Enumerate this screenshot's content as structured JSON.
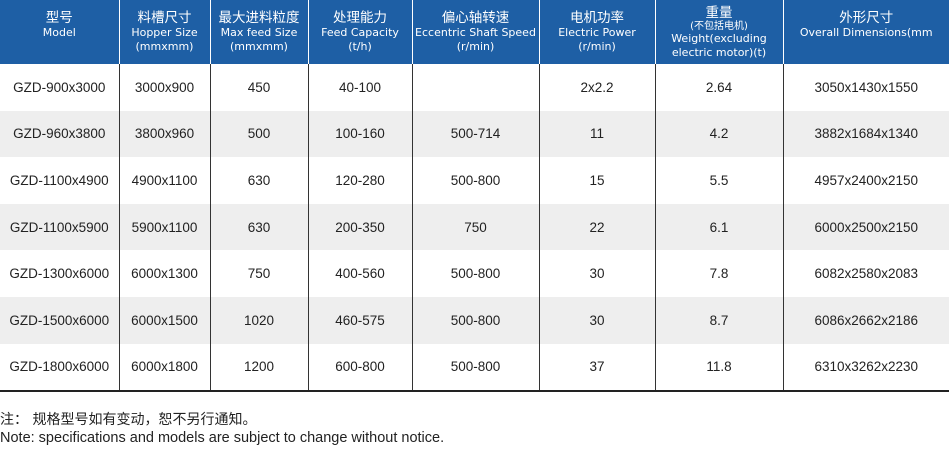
{
  "table": {
    "columns": [
      {
        "zh": "型号",
        "en": "Model"
      },
      {
        "zh": "料槽尺寸",
        "en": "Hopper Size (mmxmm)"
      },
      {
        "zh": "最大进料粒度",
        "en": "Max feed Size (mmxmm)"
      },
      {
        "zh": "处理能力",
        "en": "Feed Capacity (t/h)"
      },
      {
        "zh": "偏心轴转速",
        "en": "Eccentric Shaft Speed (r/min)"
      },
      {
        "zh": "电机功率",
        "en": "Electric Power (r/min)"
      },
      {
        "zh": "重量",
        "zh_sub": "(不包括电机)",
        "en": "Weight(excluding electric  motor)(t)"
      },
      {
        "zh": "外形尺寸",
        "en": "Overall Dimensions(mm"
      }
    ],
    "rows": [
      [
        "GZD-900x3000",
        "3000x900",
        "450",
        "40-100",
        "",
        "2x2.2",
        "2.64",
        "3050x1430x1550"
      ],
      [
        "GZD-960x3800",
        "3800x960",
        "500",
        "100-160",
        "500-714",
        "11",
        "4.2",
        "3882x1684x1340"
      ],
      [
        "GZD-1100x4900",
        "4900x1100",
        "630",
        "120-280",
        "500-800",
        "15",
        "5.5",
        "4957x2400x2150"
      ],
      [
        "GZD-1100x5900",
        "5900x1100",
        "630",
        "200-350",
        "750",
        "22",
        "6.1",
        "6000x2500x2150"
      ],
      [
        "GZD-1300x6000",
        "6000x1300",
        "750",
        "400-560",
        "500-800",
        "30",
        "7.8",
        "6082x2580x2083"
      ],
      [
        "GZD-1500x6000",
        "6000x1500",
        "1020",
        "460-575",
        "500-800",
        "30",
        "8.7",
        "6086x2662x2186"
      ],
      [
        "GZD-1800x6000",
        "6000x1800",
        "1200",
        "600-800",
        "500-800",
        "37",
        "11.8",
        "6310x3262x2230"
      ]
    ]
  },
  "notes": {
    "zh": "注：  规格型号如有变动，恕不另行通知。",
    "en": "Note:  specifications and models are subject to change without notice."
  },
  "colors": {
    "header_bg": "#1e5fa5",
    "stripe_bg": "#eeeeee"
  }
}
